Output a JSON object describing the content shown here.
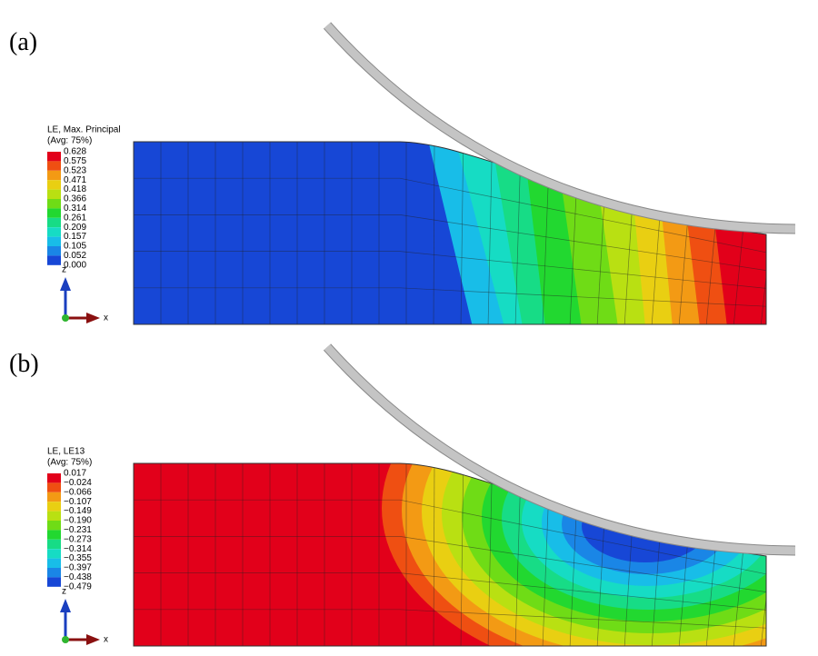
{
  "panels": [
    {
      "label": "(a)",
      "legend_title": "LE, Max. Principal",
      "legend_subtitle": "(Avg: 75%)",
      "legend_values": [
        "0.628",
        "0.575",
        "0.523",
        "0.471",
        "0.418",
        "0.366",
        "0.314",
        "0.261",
        "0.209",
        "0.157",
        "0.105",
        "0.052",
        "0.000"
      ],
      "axis_z": "z",
      "axis_x": "x"
    },
    {
      "label": "(b)",
      "legend_title": "LE, LE13",
      "legend_subtitle": "(Avg: 75%)",
      "legend_values": [
        "0.017",
        "−0.024",
        "−0.066",
        "−0.107",
        "−0.149",
        "−0.190",
        "−0.231",
        "−0.273",
        "−0.314",
        "−0.355",
        "−0.397",
        "−0.438",
        "−0.479"
      ],
      "axis_z": "z",
      "axis_x": "x"
    }
  ]
}
